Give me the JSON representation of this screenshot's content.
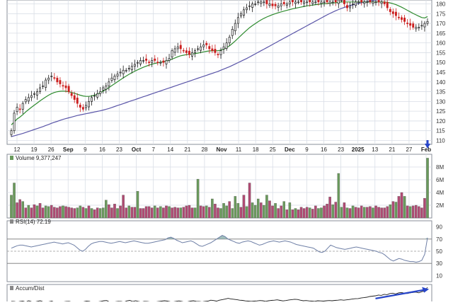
{
  "chart_data": {
    "type": "candlestick",
    "x_axis": {
      "ticks": [
        {
          "label": "12",
          "bold": false
        },
        {
          "label": "19",
          "bold": false
        },
        {
          "label": "26",
          "bold": false
        },
        {
          "label": "Sep",
          "bold": true
        },
        {
          "label": "9",
          "bold": false
        },
        {
          "label": "16",
          "bold": false
        },
        {
          "label": "23",
          "bold": false
        },
        {
          "label": "Oct",
          "bold": true
        },
        {
          "label": "7",
          "bold": false
        },
        {
          "label": "14",
          "bold": false
        },
        {
          "label": "21",
          "bold": false
        },
        {
          "label": "28",
          "bold": false
        },
        {
          "label": "Nov",
          "bold": true
        },
        {
          "label": "11",
          "bold": false
        },
        {
          "label": "18",
          "bold": false
        },
        {
          "label": "25",
          "bold": false
        },
        {
          "label": "Dec",
          "bold": true
        },
        {
          "label": "9",
          "bold": false
        },
        {
          "label": "16",
          "bold": false
        },
        {
          "label": "23",
          "bold": false
        },
        {
          "label": "2025",
          "bold": true
        },
        {
          "label": "13",
          "bold": false
        },
        {
          "label": "21",
          "bold": false
        },
        {
          "label": "27",
          "bold": false
        },
        {
          "label": "Feb",
          "bold": true
        }
      ]
    },
    "price_panel": {
      "y_ticks": [
        110,
        120,
        130,
        140,
        150,
        160,
        170
      ],
      "y_ticks_partial": [
        180
      ],
      "ylim": [
        108,
        182
      ],
      "colors": {
        "up": "#1a1a1a",
        "down": "#cc1f1f",
        "ma_short": "#2e8b2e",
        "ma_long": "#5a55a8",
        "grid": "#d9dee6"
      },
      "close": [
        115,
        124,
        127,
        126,
        129,
        131,
        132,
        133,
        134,
        135,
        137,
        138,
        141,
        142,
        143,
        142,
        140,
        139,
        138,
        137,
        135,
        133,
        131,
        129,
        127,
        126,
        128,
        130,
        132,
        133,
        134,
        135,
        137,
        138,
        140,
        142,
        143,
        144,
        145,
        146,
        146,
        147,
        148,
        149,
        150,
        151,
        151,
        151,
        150,
        151,
        151,
        150,
        150,
        150,
        151,
        152,
        156,
        157,
        158,
        157,
        156,
        155,
        154,
        155,
        156,
        157,
        158,
        159,
        159,
        157,
        156,
        155,
        154,
        156,
        158,
        160,
        163,
        167,
        170,
        173,
        175,
        177,
        178,
        179,
        180,
        180,
        181,
        181,
        181,
        180,
        180,
        179,
        179,
        179,
        180,
        180,
        180,
        181,
        181,
        181,
        181,
        181,
        181,
        181,
        181,
        181,
        181,
        181,
        181,
        181,
        181,
        181,
        181,
        181,
        182,
        182,
        180,
        178,
        179,
        180,
        181,
        181,
        181,
        181,
        181,
        181,
        181,
        181,
        181,
        181,
        180,
        178,
        176,
        175,
        174,
        173,
        172,
        171,
        170,
        169,
        168,
        168,
        168,
        169,
        170,
        171
      ],
      "ma_short": [
        118,
        119.5,
        121,
        122,
        123.2,
        124.6,
        125.8,
        127,
        128.1,
        129.2,
        130.3,
        131.3,
        132.3,
        133.2,
        134,
        134.6,
        135,
        135.2,
        135.3,
        135.2,
        135,
        134.6,
        134.2,
        133.7,
        133.2,
        132.8,
        132.6,
        132.6,
        132.8,
        133.2,
        133.8,
        134.5,
        135.3,
        136.2,
        137.1,
        138.1,
        139.1,
        140.1,
        141.1,
        142.1,
        143,
        143.9,
        144.7,
        145.5,
        146.2,
        146.9,
        147.5,
        148.1,
        148.6,
        149.1,
        149.5,
        149.8,
        150.1,
        150.4,
        150.7,
        151.1,
        151.7,
        152.3,
        152.9,
        153.4,
        153.7,
        154,
        154.1,
        154.3,
        154.5,
        154.8,
        155.1,
        155.4,
        155.7,
        155.9,
        156,
        156,
        156,
        156.3,
        156.8,
        157.5,
        158.5,
        159.7,
        161,
        162.4,
        163.8,
        165.2,
        166.5,
        167.8,
        168.9,
        169.9,
        170.9,
        171.8,
        172.6,
        173.3,
        173.9,
        174.5,
        175,
        175.5,
        175.9,
        176.3,
        176.7,
        177.1,
        177.5,
        177.8,
        178.1,
        178.4,
        178.7,
        179,
        179.2,
        179.4,
        179.6,
        179.8,
        180,
        180.1,
        180.2,
        180.4,
        180.5,
        180.6,
        180.8,
        181,
        181,
        181,
        181,
        181,
        181,
        181,
        181,
        181,
        181,
        181,
        181,
        181,
        181,
        181,
        181,
        180.8,
        180.5,
        180.1,
        179.6,
        179,
        178.3,
        177.5,
        176.7,
        175.9,
        175.1,
        174.4,
        173.7,
        173,
        172.8,
        173.5
      ],
      "ma_long": [
        112,
        112.4,
        112.8,
        113.2,
        113.6,
        114.1,
        114.6,
        115.1,
        115.6,
        116.1,
        116.6,
        117.1,
        117.7,
        118.2,
        118.8,
        119.3,
        119.8,
        120.3,
        120.8,
        121.2,
        121.6,
        122,
        122.4,
        122.8,
        123.1,
        123.4,
        123.7,
        124,
        124.3,
        124.6,
        124.9,
        125.2,
        125.6,
        126,
        126.4,
        126.9,
        127.4,
        127.9,
        128.4,
        128.9,
        129.4,
        129.9,
        130.4,
        130.9,
        131.4,
        131.9,
        132.4,
        132.9,
        133.4,
        133.9,
        134.4,
        134.9,
        135.4,
        135.9,
        136.4,
        136.9,
        137.4,
        137.9,
        138.4,
        138.9,
        139.4,
        139.9,
        140.4,
        140.9,
        141.4,
        141.9,
        142.4,
        142.9,
        143.4,
        143.9,
        144.4,
        144.9,
        145.4,
        146,
        146.6,
        147.2,
        147.8,
        148.5,
        149.2,
        149.9,
        150.6,
        151.3,
        152,
        152.8,
        153.6,
        154.4,
        155.2,
        156,
        156.8,
        157.6,
        158.4,
        159.2,
        160,
        160.8,
        161.6,
        162.4,
        163.2,
        164,
        164.8,
        165.6,
        166.4,
        167.2,
        168,
        168.8,
        169.6,
        170.4,
        171.2,
        172,
        172.8,
        173.6,
        174.4,
        175.1,
        175.8,
        176.5,
        177.1,
        177.7,
        178.2,
        178.7,
        179.1,
        179.5,
        179.9,
        180.3,
        180.6,
        180.9,
        181.2,
        181.5,
        181.8,
        182,
        182.2,
        182.4,
        182.6,
        182.8,
        183,
        183.2,
        183.4,
        183.6,
        183.8,
        184,
        184.2,
        184.4,
        184.6,
        184.8,
        185,
        185.2,
        185.4,
        185.6
      ]
    },
    "volume_panel": {
      "label": "Volume 9,377,247",
      "y_ticks": [
        "2M",
        "4M",
        "6M",
        "8M"
      ],
      "ylim": [
        0,
        10
      ],
      "values": [
        3.6,
        5.5,
        2.4,
        2.9,
        2.6,
        1.6,
        2.0,
        1.6,
        2.1,
        1.9,
        2.3,
        1.6,
        1.9,
        1.8,
        2.0,
        1.7,
        1.6,
        1.8,
        1.9,
        1.8,
        1.7,
        1.6,
        1.5,
        1.6,
        1.9,
        1.7,
        1.5,
        1.9,
        1.5,
        1.3,
        1.6,
        1.5,
        1.6,
        2.8,
        2.1,
        1.6,
        2.2,
        1.5,
        1.9,
        3.6,
        1.6,
        1.9,
        1.7,
        1.7,
        4.2,
        1.5,
        1.5,
        1.8,
        1.8,
        1.6,
        1.9,
        1.6,
        1.8,
        1.6,
        1.9,
        1.8,
        1.6,
        1.7,
        1.6,
        1.6,
        1.7,
        1.9,
        2.0,
        1.6,
        1.6,
        6.1,
        1.9,
        1.8,
        1.9,
        1.7,
        3.0,
        2.2,
        1.6,
        1.5,
        2.3,
        1.9,
        2.6,
        1.5,
        3.4,
        2.3,
        1.7,
        3.6,
        1.8,
        5.5,
        2.4,
        2.0,
        3.0,
        2.4,
        2.0,
        3.6,
        2.7,
        1.9,
        2.3,
        1.5,
        1.9,
        2.6,
        1.3,
        2.4,
        1.3,
        1.5,
        1.3,
        1.7,
        1.5,
        1.7,
        1.6,
        1.4,
        1.9,
        1.5,
        1.6,
        1.9,
        2.2,
        3.3,
        2.1,
        2.5,
        7.0,
        1.7,
        2.4,
        1.6,
        1.5,
        1.9,
        1.7,
        1.6,
        1.9,
        1.7,
        1.7,
        1.8,
        1.6,
        1.9,
        1.7,
        1.6,
        1.6,
        1.8,
        2.1,
        2.6,
        2.5,
        3.4,
        4.0,
        3.4,
        1.9,
        1.8,
        1.9,
        2.0,
        1.8,
        1.6,
        3.1,
        9.4
      ],
      "up": [
        true,
        true,
        false,
        false,
        true,
        false,
        true,
        false,
        false,
        true,
        false,
        false,
        true,
        true,
        false,
        false,
        false,
        false,
        true,
        false,
        false,
        false,
        false,
        true,
        true,
        false,
        true,
        false,
        true,
        false,
        false,
        true,
        true,
        true,
        false,
        false,
        false,
        true,
        false,
        false,
        false,
        true,
        false,
        false,
        true,
        false,
        false,
        false,
        false,
        false,
        true,
        false,
        true,
        false,
        false,
        true,
        false,
        false,
        false,
        true,
        false,
        false,
        false,
        false,
        true,
        true,
        false,
        false,
        true,
        false,
        true,
        false,
        false,
        true,
        true,
        true,
        false,
        true,
        true,
        true,
        false,
        false,
        true,
        false,
        true,
        true,
        true,
        false,
        true,
        true,
        false,
        false,
        true,
        false,
        false,
        true,
        false,
        true,
        false,
        true,
        false,
        false,
        false,
        false,
        true,
        false,
        false,
        true,
        true,
        false,
        false,
        false,
        true,
        false,
        true,
        true,
        false,
        true,
        false,
        true,
        false,
        false,
        false,
        true,
        false,
        false,
        true,
        false,
        false,
        false,
        false,
        false,
        true,
        false,
        true,
        false,
        false,
        true,
        false,
        true,
        false,
        false,
        false,
        false,
        false,
        true
      ],
      "colors": {
        "up": "#6a9a5c",
        "down": "#b04a73"
      }
    },
    "rsi_panel": {
      "label": "RSI(14) 72.19",
      "y_ticks": [
        90,
        70,
        50,
        30,
        10
      ],
      "overbought": 70,
      "oversold": 30,
      "ylim": [
        0,
        100
      ],
      "values": [
        55,
        57,
        59,
        60,
        60,
        59,
        58,
        57,
        58,
        59,
        60,
        61,
        62,
        63,
        64,
        65,
        64,
        63,
        62,
        63,
        64,
        62,
        60,
        56,
        52,
        50,
        53,
        58,
        62,
        64,
        65,
        66,
        66,
        65,
        64,
        63,
        64,
        65,
        66,
        65,
        64,
        65,
        66,
        67,
        66,
        65,
        64,
        63,
        63,
        64,
        65,
        66,
        67,
        68,
        69,
        72,
        73,
        71,
        68,
        66,
        64,
        65,
        66,
        67,
        65,
        62,
        59,
        58,
        60,
        62,
        64,
        67,
        70,
        73,
        76,
        74,
        70,
        68,
        66,
        64,
        63,
        65,
        66,
        67,
        66,
        64,
        62,
        60,
        61,
        63,
        65,
        66,
        67,
        66,
        65,
        66,
        67,
        66,
        65,
        63,
        61,
        60,
        59,
        58,
        57,
        56,
        55,
        52,
        49,
        48,
        50,
        55,
        60,
        58,
        56,
        55,
        54,
        53,
        54,
        55,
        56,
        57,
        56,
        55,
        54,
        53,
        52,
        51,
        50,
        48,
        47,
        44,
        40,
        36,
        34,
        36,
        38,
        37,
        35,
        34,
        33,
        33,
        32,
        33,
        35,
        45,
        72.19
      ],
      "color": "#6e7fa6"
    },
    "accum_panel": {
      "label": "Accum/Dist",
      "values": [
        0.24,
        0.23,
        0.2,
        0.23,
        0.25,
        0.2,
        0.27,
        0.22,
        0.2,
        0.24,
        0.27,
        0.21,
        0.19,
        0.22,
        0.25,
        0.18,
        0.2,
        0.19,
        0.21,
        0.23,
        0.24,
        0.2,
        0.17,
        0.19,
        0.2,
        0.22,
        0.25,
        0.24,
        0.18,
        0.2,
        0.21,
        0.24,
        0.27,
        0.28,
        0.2,
        0.16,
        0.22,
        0.24,
        0.23,
        0.2,
        0.26,
        0.29,
        0.23,
        0.27,
        0.23,
        0.2,
        0.24,
        0.23,
        0.21,
        0.19,
        0.21,
        0.23,
        0.25,
        0.27,
        0.25,
        0.22,
        0.21,
        0.24,
        0.26,
        0.23,
        0.2,
        0.22,
        0.25,
        0.27,
        0.24,
        0.23,
        0.21,
        0.24,
        0.25,
        0.3,
        0.28,
        0.25,
        0.3,
        0.33,
        0.36,
        0.4,
        0.37,
        0.35,
        0.33,
        0.3,
        0.29,
        0.26,
        0.25,
        0.24,
        0.25,
        0.26,
        0.28,
        0.27,
        0.24,
        0.27,
        0.29,
        0.3,
        0.32,
        0.29,
        0.26,
        0.28,
        0.31,
        0.33,
        0.35,
        0.34,
        0.3,
        0.27,
        0.28,
        0.26,
        0.25,
        0.24,
        0.27,
        0.26,
        0.25,
        0.27,
        0.28,
        0.27,
        0.29,
        0.3,
        0.32,
        0.3,
        0.32,
        0.34,
        0.36,
        0.38,
        0.39,
        0.42,
        0.44,
        0.46,
        0.5,
        0.52,
        0.54,
        0.58,
        0.56,
        0.62,
        0.6,
        0.66,
        0.68,
        0.64,
        0.7,
        0.72,
        0.68,
        0.66,
        0.7,
        0.72,
        0.74,
        0.7,
        0.76,
        0.8,
        1.0
      ],
      "line_color": "#1a1a1a",
      "trend_color": "#2846c9"
    },
    "markers": {
      "volume_arrow_color": "#2846c9"
    }
  }
}
